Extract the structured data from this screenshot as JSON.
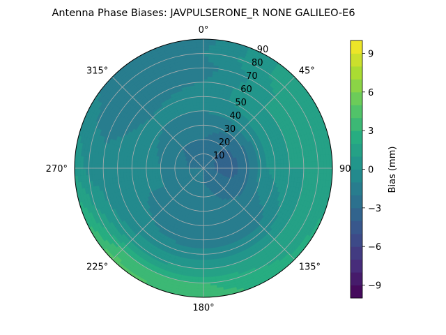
{
  "chart_data": {
    "type": "polar-contour",
    "title": "Antenna Phase Biases: JAVPULSERONE_R  NONE GALILEO-E6",
    "azimuth_ticks": [
      {
        "deg": 0,
        "label": "0°"
      },
      {
        "deg": 45,
        "label": "45°"
      },
      {
        "deg": 90,
        "label": "90°"
      },
      {
        "deg": 135,
        "label": "135°"
      },
      {
        "deg": 180,
        "label": "180°"
      },
      {
        "deg": 225,
        "label": "225°"
      },
      {
        "deg": 270,
        "label": "270°"
      },
      {
        "deg": 315,
        "label": "315°"
      }
    ],
    "radial_ticks": [
      10,
      20,
      30,
      40,
      50,
      60,
      70,
      80,
      90
    ],
    "radial_tick_labels": [
      "10",
      "20",
      "30",
      "40",
      "50",
      "60",
      "70",
      "80",
      "90"
    ],
    "rlim": [
      0,
      90
    ],
    "grid": true,
    "colorbar": {
      "label": "Bias (mm)",
      "range": [
        -10,
        10
      ],
      "levels": 20,
      "ticks": [
        -9,
        -6,
        -3,
        0,
        3,
        6,
        9
      ],
      "tick_labels": [
        "−9",
        "−6",
        "−3",
        "0",
        "3",
        "6",
        "9"
      ],
      "colormap": "viridis"
    },
    "bias_field_mm": {
      "note_free": true,
      "rings_deg": [
        0,
        10,
        20,
        30,
        40,
        50,
        60,
        70,
        80,
        90
      ],
      "azimuths_deg": [
        0,
        45,
        90,
        135,
        180,
        225,
        270,
        315
      ],
      "values": [
        [
          -2.0,
          -2.0,
          -2.0,
          -2.0,
          -2.0,
          -2.0,
          -2.0,
          -2.0
        ],
        [
          -2.5,
          -3.0,
          -3.3,
          -2.5,
          -2.0,
          -2.0,
          -2.0,
          -2.2
        ],
        [
          -2.0,
          -3.0,
          -3.5,
          -2.5,
          -1.5,
          -1.5,
          -1.5,
          -2.0
        ],
        [
          -1.5,
          -2.0,
          -2.5,
          -2.0,
          -1.5,
          -1.0,
          -1.0,
          -1.5
        ],
        [
          -1.0,
          -0.5,
          -0.5,
          -1.5,
          -2.0,
          -1.5,
          -0.5,
          -1.0
        ],
        [
          -0.5,
          0.5,
          0.5,
          -1.5,
          -2.0,
          -1.0,
          -0.5,
          -1.0
        ],
        [
          -1.0,
          1.0,
          1.0,
          -0.5,
          -0.5,
          -0.5,
          -0.5,
          -1.5
        ],
        [
          -1.5,
          1.0,
          1.0,
          1.0,
          1.0,
          0.5,
          -0.5,
          -2.0
        ],
        [
          -1.0,
          1.5,
          1.5,
          1.5,
          3.0,
          3.0,
          -0.5,
          -1.5
        ],
        [
          -1.5,
          1.5,
          1.5,
          2.5,
          3.5,
          4.5,
          1.0,
          -1.5
        ]
      ]
    }
  }
}
